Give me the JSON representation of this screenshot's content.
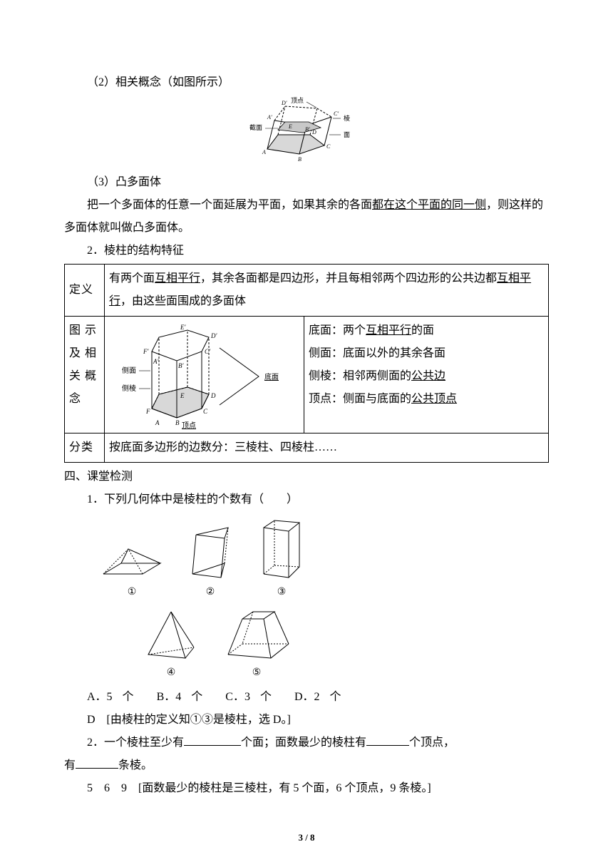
{
  "colors": {
    "text": "#000000",
    "bg": "#ffffff",
    "border": "#000000",
    "shade": "#d0d0d0"
  },
  "p1": "（2）相关概念（如图所示）",
  "fig1": {
    "labels": {
      "top": "顶点",
      "edge": "棱",
      "face": "面",
      "section": "截面"
    },
    "verts": {
      "A": "A",
      "B": "B",
      "C": "C",
      "D": "D",
      "E": "E",
      "A1": "A′",
      "B1": "B′",
      "C1": "C′",
      "D1": "D′"
    }
  },
  "p2": "（3）凸多面体",
  "p3a": "把一个多面体的任意一个面延展为平面，如果其余的各面",
  "p3u": "都在这个平面的同一侧",
  "p3b": "，则这样的多面体就叫做凸多面体。",
  "p4": "2．棱柱的结构特征",
  "table": {
    "row1_label": "定义",
    "row1_a": "有两个面",
    "row1_u1": "互相平行",
    "row1_b": "，其余各面都是四边形，并且每相邻两个四边形的公共边都",
    "row1_u2": "互相平行",
    "row1_c": "，由这些面围成的多面体",
    "row2_label": "图 示 及 相 关 概 念",
    "fig2": {
      "side_face": "侧面",
      "side_edge": "侧棱",
      "base": "底面",
      "vertex": "顶点",
      "A": "A",
      "B": "B",
      "C": "C",
      "D": "D",
      "E": "E",
      "F": "F",
      "A1": "A′",
      "B1": "B′",
      "C1": "C′",
      "D1": "D′",
      "E1": "E′",
      "F1": "F′"
    },
    "row2_right": {
      "l1a": "底面：两个",
      "l1u": "互相平行",
      "l1b": "的面",
      "l2": "侧面：底面以外的其余各面",
      "l3a": "侧棱：相邻两侧面的",
      "l3u": "公共边",
      "l4a": "顶点：侧面与底面的",
      "l4u": "公共顶点"
    },
    "row3_label": "分类",
    "row3_text": "按底面多边形的边数分：三棱柱、四棱柱……"
  },
  "h_section": "四、课堂检测",
  "q1": "1．下列几何体中是棱柱的个数有（　　）",
  "shape_labels": {
    "s1": "①",
    "s2": "②",
    "s3": "③",
    "s4": "④",
    "s5": "⑤"
  },
  "choices": {
    "A": "A．5 个",
    "B": "B．4 个",
    "C": "C．3 个",
    "D": "D．2 个"
  },
  "ans1": "D　[由棱柱的定义知①③是棱柱，选 D。]",
  "q2a": "2．一个棱柱至少有",
  "q2b": "个面；面数最少的棱柱有",
  "q2c": "个顶点，",
  "q2d": "有",
  "q2e": "条棱。",
  "ans2": "5　6　9　[面数最少的棱柱是三棱柱，有 5 个面，6 个顶点，9 条棱。]",
  "footer": "3 / 8",
  "blanks": {
    "w1": 80,
    "w2": 60,
    "w3": 60
  },
  "fontsize": 16
}
